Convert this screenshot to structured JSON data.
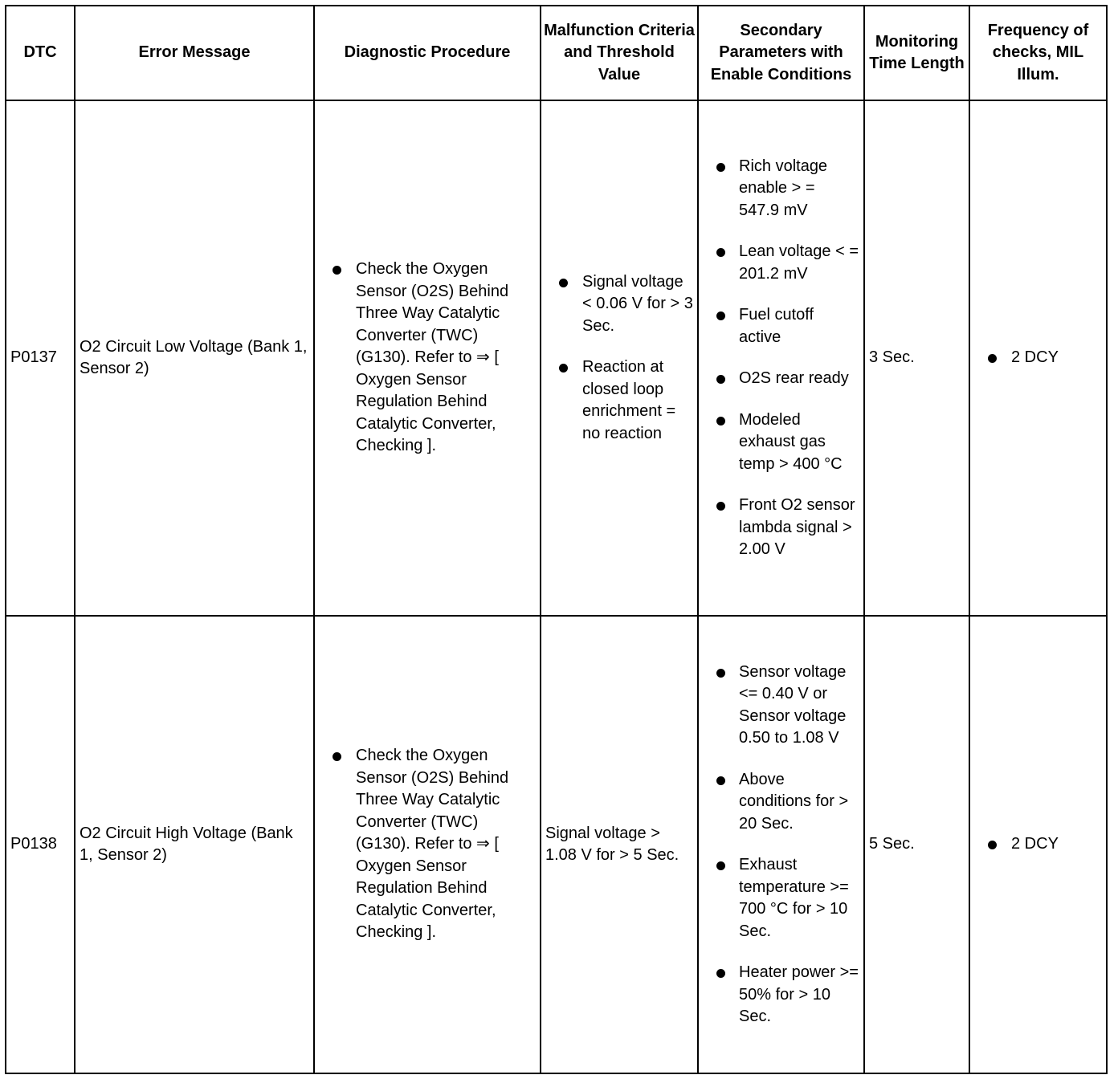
{
  "headers": [
    "DTC",
    "Error Message",
    "Diagnostic Procedure",
    "Malfunction Criteria and Threshold Value",
    "Secondary Parameters with Enable Conditions",
    "Monitoring Time Length",
    "Frequency of checks, MIL Illum."
  ],
  "rows": [
    {
      "dtc": "P0137",
      "error": "O2 Circuit Low Voltage (Bank 1, Sensor 2)",
      "procedure": [
        "Check the Oxygen Sensor (O2S) Behind Three Way Catalytic Converter (TWC) (G130). Refer to ⇒ [ Oxygen Sensor Regulation Behind Catalytic Converter, Checking ]."
      ],
      "criteria": [
        "Signal voltage < 0.06 V for > 3 Sec.",
        "Reaction at closed loop enrichment = no reaction"
      ],
      "secondary": [
        "Rich voltage enable > = 547.9 mV",
        "Lean voltage < = 201.2 mV",
        "Fuel cutoff active",
        "O2S rear ready",
        "Modeled exhaust gas temp > 400 °C",
        "Front O2 sensor lambda signal > 2.00 V"
      ],
      "time": "3 Sec.",
      "frequency": [
        "2 DCY"
      ]
    },
    {
      "dtc": "P0138",
      "error": "O2 Circuit High Voltage (Bank 1, Sensor 2)",
      "procedure": [
        "Check the Oxygen Sensor (O2S) Behind Three Way Catalytic Converter (TWC) (G130). Refer to ⇒ [ Oxygen Sensor Regulation Behind Catalytic Converter, Checking ]."
      ],
      "criteria_text": "Signal voltage > 1.08 V for > 5 Sec.",
      "secondary": [
        "Sensor voltage <= 0.40 V or Sensor voltage 0.50 to 1.08 V",
        "Above conditions for > 20 Sec.",
        "Exhaust temperature >= 700 °C for > 10 Sec.",
        "Heater power >= 50% for > 10 Sec."
      ],
      "time": "5 Sec.",
      "frequency": [
        "2 DCY"
      ]
    }
  ]
}
